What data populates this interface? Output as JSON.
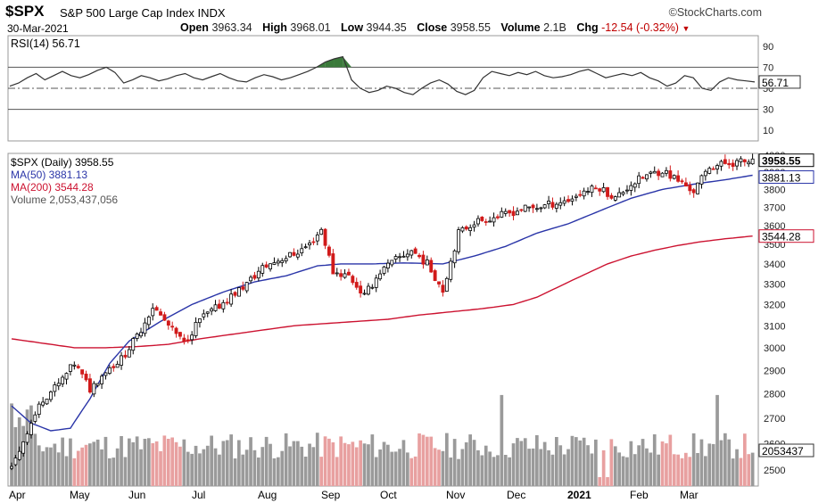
{
  "header": {
    "symbol": "$SPX",
    "name": "S&P 500 Large Cap Index",
    "exchange": "INDX",
    "brand": "©StockCharts.com",
    "date": "30-Mar-2021",
    "open_label": "Open",
    "open": "3963.34",
    "high_label": "High",
    "high": "3968.01",
    "low_label": "Low",
    "low": "3944.35",
    "close_label": "Close",
    "close": "3958.55",
    "volume_label": "Volume",
    "volume": "2.1B",
    "chg_label": "Chg",
    "chg": "-12.54 (-0.32%)"
  },
  "colors": {
    "rsi_line": "#333333",
    "rsi_fill": "#3a7a3a",
    "ma50": "#2a35a8",
    "ma200": "#cc1230",
    "up_candle": "#000000",
    "down_candle": "#d11a1a",
    "vol_up": "#9a9a9a",
    "vol_down": "#e8a0a0"
  },
  "chart_data": [
    {
      "type": "line",
      "title": "RSI(14) 56.71",
      "series": [
        {
          "name": "RSI(14)",
          "values": [
            52,
            55,
            60,
            64,
            58,
            62,
            66,
            62,
            60,
            63,
            67,
            70,
            65,
            55,
            58,
            62,
            60,
            57,
            59,
            62,
            64,
            60,
            58,
            61,
            64,
            60,
            57,
            56,
            60,
            63,
            61,
            58,
            60,
            63,
            66,
            70,
            75,
            78,
            80,
            58,
            50,
            46,
            48,
            52,
            50,
            46,
            44,
            50,
            55,
            58,
            54,
            47,
            44,
            48,
            60,
            66,
            64,
            62,
            65,
            63,
            66,
            62,
            60,
            61,
            63,
            66,
            68,
            64,
            60,
            62,
            64,
            62,
            65,
            60,
            57,
            52,
            55,
            62,
            60,
            50,
            48,
            56,
            60,
            58,
            57,
            56
          ]
        }
      ],
      "y_ticks": [
        90,
        70,
        50,
        30,
        10
      ],
      "ylim": [
        0,
        100
      ],
      "reference_lines": [
        70,
        50,
        30
      ],
      "last_value_label": "56.71"
    },
    {
      "type": "candlestick",
      "title": "$SPX (Daily) 3958.55",
      "legend": [
        {
          "label": "$SPX (Daily) 3958.55",
          "color": "#000000"
        },
        {
          "label": "MA(50) 3881.13",
          "color": "#2a35a8"
        },
        {
          "label": "MA(200) 3544.28",
          "color": "#cc1230"
        },
        {
          "label": "Volume 2,053,437,056",
          "color": "#555555"
        }
      ],
      "x_labels": [
        "Apr",
        "May",
        "Jun",
        "Jul",
        "Aug",
        "Sep",
        "Oct",
        "Nov",
        "Dec",
        "2021",
        "Feb",
        "Mar"
      ],
      "y_ticks": [
        4000,
        3900,
        3800,
        3700,
        3600,
        3500,
        3400,
        3300,
        3200,
        3100,
        3000,
        2900,
        2800,
        2700,
        2600,
        2500
      ],
      "ylim": [
        2440,
        4010
      ],
      "log_scale": true,
      "close_anchors": [
        [
          0,
          2500
        ],
        [
          4,
          2650
        ],
        [
          8,
          2780
        ],
        [
          12,
          2840
        ],
        [
          16,
          2930
        ],
        [
          20,
          2820
        ],
        [
          24,
          2900
        ],
        [
          28,
          2950
        ],
        [
          32,
          3050
        ],
        [
          36,
          3190
        ],
        [
          40,
          3100
        ],
        [
          44,
          3020
        ],
        [
          48,
          3130
        ],
        [
          52,
          3180
        ],
        [
          56,
          3240
        ],
        [
          60,
          3300
        ],
        [
          64,
          3380
        ],
        [
          68,
          3420
        ],
        [
          72,
          3450
        ],
        [
          76,
          3500
        ],
        [
          79,
          3580
        ],
        [
          82,
          3360
        ],
        [
          86,
          3340
        ],
        [
          90,
          3240
        ],
        [
          94,
          3360
        ],
        [
          98,
          3420
        ],
        [
          102,
          3470
        ],
        [
          106,
          3400
        ],
        [
          110,
          3270
        ],
        [
          114,
          3560
        ],
        [
          118,
          3620
        ],
        [
          122,
          3640
        ],
        [
          126,
          3660
        ],
        [
          130,
          3690
        ],
        [
          134,
          3700
        ],
        [
          138,
          3720
        ],
        [
          142,
          3740
        ],
        [
          146,
          3790
        ],
        [
          150,
          3810
        ],
        [
          154,
          3750
        ],
        [
          158,
          3830
        ],
        [
          162,
          3880
        ],
        [
          166,
          3910
        ],
        [
          170,
          3850
        ],
        [
          174,
          3790
        ],
        [
          178,
          3930
        ],
        [
          182,
          3950
        ],
        [
          186,
          3960
        ],
        [
          189,
          3958.55
        ]
      ],
      "ma50_anchors": [
        [
          0,
          2750
        ],
        [
          5,
          2680
        ],
        [
          10,
          2650
        ],
        [
          15,
          2660
        ],
        [
          20,
          2780
        ],
        [
          25,
          2930
        ],
        [
          30,
          3030
        ],
        [
          38,
          3120
        ],
        [
          46,
          3200
        ],
        [
          54,
          3260
        ],
        [
          62,
          3310
        ],
        [
          70,
          3340
        ],
        [
          78,
          3390
        ],
        [
          84,
          3400
        ],
        [
          92,
          3400
        ],
        [
          100,
          3405
        ],
        [
          110,
          3400
        ],
        [
          118,
          3440
        ],
        [
          126,
          3490
        ],
        [
          134,
          3560
        ],
        [
          142,
          3610
        ],
        [
          150,
          3680
        ],
        [
          158,
          3750
        ],
        [
          166,
          3800
        ],
        [
          174,
          3830
        ],
        [
          182,
          3855
        ],
        [
          189,
          3881.13
        ]
      ],
      "ma200_anchors": [
        [
          0,
          3040
        ],
        [
          8,
          3020
        ],
        [
          16,
          3000
        ],
        [
          24,
          3000
        ],
        [
          32,
          3005
        ],
        [
          40,
          3015
        ],
        [
          48,
          3040
        ],
        [
          56,
          3060
        ],
        [
          64,
          3080
        ],
        [
          72,
          3100
        ],
        [
          80,
          3110
        ],
        [
          88,
          3120
        ],
        [
          96,
          3130
        ],
        [
          104,
          3150
        ],
        [
          112,
          3165
        ],
        [
          120,
          3180
        ],
        [
          128,
          3200
        ],
        [
          134,
          3235
        ],
        [
          140,
          3290
        ],
        [
          146,
          3345
        ],
        [
          152,
          3400
        ],
        [
          158,
          3440
        ],
        [
          164,
          3470
        ],
        [
          170,
          3495
        ],
        [
          176,
          3515
        ],
        [
          182,
          3530
        ],
        [
          189,
          3544.28
        ]
      ],
      "last_labels": {
        "close": "3958.55",
        "ma50": "3881.13",
        "ma200": "3544.28",
        "volume": "2053437"
      }
    }
  ]
}
